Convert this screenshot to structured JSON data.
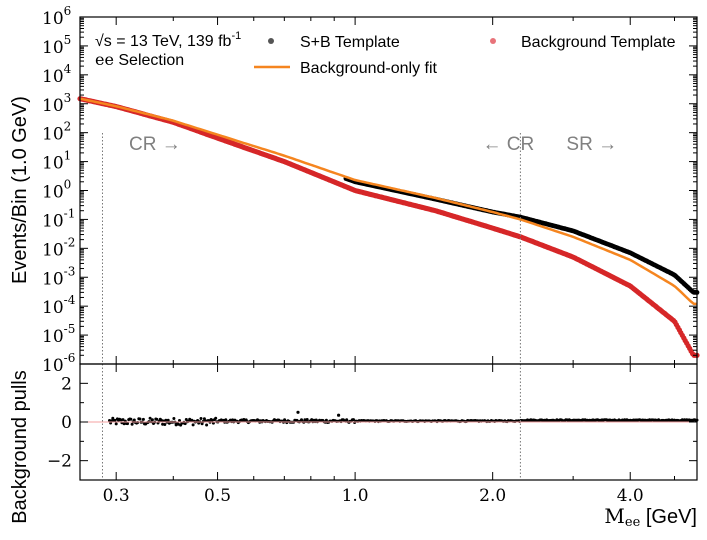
{
  "chart_data": {
    "type": "scatter",
    "annotation_lines": [
      "√s = 13 TeV, 139 fb",
      "-1",
      "ee",
      " Selection"
    ],
    "legend": [
      {
        "label": "S+B Template",
        "color": "#555555",
        "kind": "marker"
      },
      {
        "label": "Background Template",
        "color": "#e8737a",
        "kind": "marker"
      },
      {
        "label": "Background-only fit",
        "color": "#f5851f",
        "kind": "line"
      }
    ],
    "top_panel": {
      "ylabel": "Events/Bin (1.0 GeV)",
      "yscale": "log",
      "ylim": [
        1e-06,
        1000000.0
      ],
      "yticks": [
        "10",
        "10",
        "10",
        "10",
        "10",
        "10",
        "10",
        "10",
        "10",
        "10",
        "10",
        "10",
        "10"
      ],
      "ytick_exponents": [
        "-6",
        "-5",
        "-4",
        "-3",
        "-2",
        "-1",
        "0",
        "1",
        "2",
        "3",
        "4",
        "5",
        "6"
      ],
      "series": [
        {
          "name": "S+B Template",
          "color": "#000000",
          "x": [
            0.25,
            0.3,
            0.4,
            0.5,
            0.7,
            1.0,
            1.5,
            2.0,
            2.3,
            3.0,
            4.0,
            5.0,
            5.5
          ],
          "y": [
            1500,
            800,
            250,
            80,
            15,
            2.0,
            0.5,
            0.18,
            0.12,
            0.04,
            0.007,
            0.0012,
            0.0003
          ]
        },
        {
          "name": "Background Template",
          "color": "#d62728",
          "x": [
            0.25,
            0.3,
            0.4,
            0.5,
            0.7,
            1.0,
            1.5,
            2.0,
            2.3,
            3.0,
            4.0,
            5.0,
            5.5
          ],
          "y": [
            1500,
            800,
            230,
            65,
            10,
            1.0,
            0.2,
            0.05,
            0.025,
            0.005,
            0.0005,
            3e-05,
            2e-06
          ]
        },
        {
          "name": "Background-only fit",
          "color": "#f5851f",
          "x": [
            0.25,
            0.3,
            0.4,
            0.5,
            0.7,
            1.0,
            1.5,
            2.0,
            2.3,
            3.0,
            4.0,
            5.0,
            5.5
          ],
          "y": [
            1500,
            820,
            260,
            85,
            16,
            2.3,
            0.55,
            0.18,
            0.1,
            0.025,
            0.004,
            0.0005,
            0.00012
          ]
        }
      ],
      "region_labels": [
        {
          "text": "CR →",
          "x": 0.32
        },
        {
          "text": "← CR",
          "x": 1.9
        },
        {
          "text": "SR →",
          "x": 2.9
        }
      ]
    },
    "bottom_panel": {
      "ylabel": "Background pulls",
      "ylim": [
        -3,
        3
      ],
      "yticks": [
        "−2",
        "0",
        "2"
      ],
      "ytick_values": [
        -2,
        0,
        2
      ],
      "series": {
        "name": "Background pulls",
        "color": "#000000"
      }
    },
    "xlabel_main": "M",
    "xlabel_sub": "ee",
    "xlabel_unit": " [GeV]",
    "xscale": "log",
    "xlim": [
      0.25,
      5.6
    ],
    "xticks": [
      "0.3",
      "0.5",
      "1.0",
      "2.0",
      "4.0"
    ],
    "xtick_values": [
      0.3,
      0.5,
      1.0,
      2.0,
      4.0
    ],
    "vlines_x": [
      0.28,
      2.3
    ]
  }
}
